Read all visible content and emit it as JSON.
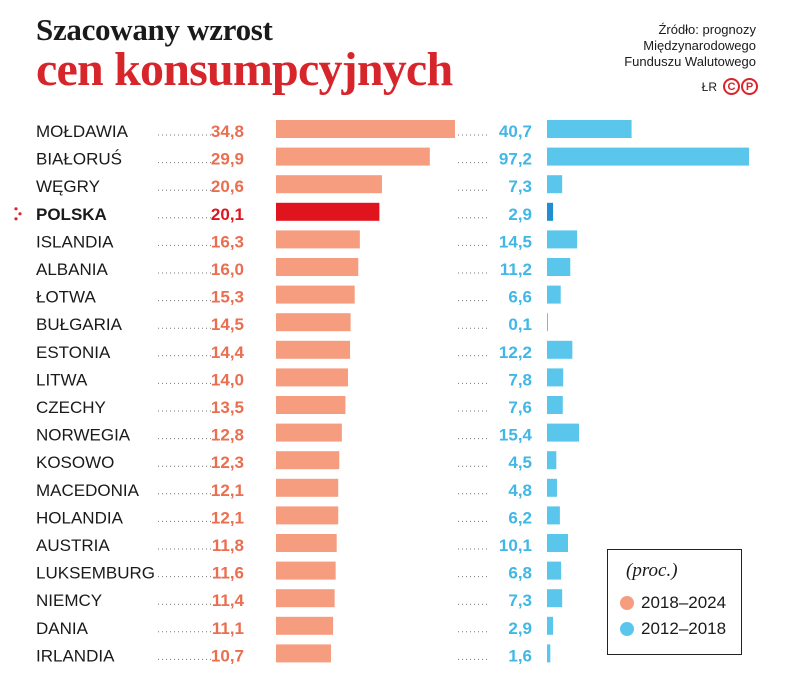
{
  "title_line1": "Szacowany wzrost",
  "title_line2": "cen konsumpcyjnych",
  "source_lines": [
    "Źródło: prognozy",
    "Międzynarodowego",
    "Funduszu Walutowego"
  ],
  "author": "ŁR",
  "logo_letters": [
    "C",
    "P"
  ],
  "legend": {
    "title": "(proc.)",
    "items": [
      {
        "label": "2018–2024",
        "color": "#f59d7e"
      },
      {
        "label": "2012–2018",
        "color": "#5bc6ec"
      }
    ]
  },
  "colors": {
    "series1": "#f59d7e",
    "series1_highlight": "#e0141f",
    "series1_text": "#ea6e50",
    "series2": "#5bc6ec",
    "series2_text": "#41b7e6",
    "highlight_marker": "#d7262b"
  },
  "chart_data": {
    "type": "bar",
    "orientation": "horizontal",
    "highlight": "POLSKA",
    "categories": [
      "MOŁDAWIA",
      "BIAŁORUŚ",
      "WĘGRY",
      "POLSKA",
      "ISLANDIA",
      "ALBANIA",
      "ŁOTWA",
      "BUŁGARIA",
      "ESTONIA",
      "LITWA",
      "CZECHY",
      "NORWEGIA",
      "KOSOWO",
      "MACEDONIA",
      "HOLANDIA",
      "AUSTRIA",
      "LUKSEMBURG",
      "NIEMCY",
      "DANIA",
      "IRLANDIA"
    ],
    "series": [
      {
        "name": "2018–2024",
        "labels": [
          "34,8",
          "29,9",
          "20,6",
          "20,1",
          "16,3",
          "16,0",
          "15,3",
          "14,5",
          "14,4",
          "14,0",
          "13,5",
          "12,8",
          "12,3",
          "12,1",
          "12,1",
          "11,8",
          "11,6",
          "11,4",
          "11,1",
          "10,7"
        ],
        "values": [
          34.8,
          29.9,
          20.6,
          20.1,
          16.3,
          16.0,
          15.3,
          14.5,
          14.4,
          14.0,
          13.5,
          12.8,
          12.3,
          12.1,
          12.1,
          11.8,
          11.6,
          11.4,
          11.1,
          10.7
        ]
      },
      {
        "name": "2012–2018",
        "labels": [
          "40,7",
          "97,2",
          "7,3",
          "2,9",
          "14,5",
          "11,2",
          "6,6",
          "0,1",
          "12,2",
          "7,8",
          "7,6",
          "15,4",
          "4,5",
          "4,8",
          "6,2",
          "10,1",
          "6,8",
          "7,3",
          "2,9",
          "1,6"
        ],
        "values": [
          40.7,
          97.2,
          7.3,
          2.9,
          14.5,
          11.2,
          6.6,
          0.1,
          12.2,
          7.8,
          7.6,
          15.4,
          4.5,
          4.8,
          6.2,
          10.1,
          6.8,
          7.3,
          2.9,
          1.6
        ]
      }
    ]
  }
}
